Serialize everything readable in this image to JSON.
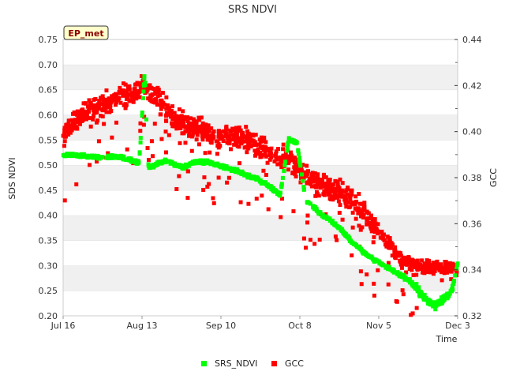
{
  "chart_data": {
    "type": "scatter",
    "title": "SRS NDVI",
    "badge": "EP_met",
    "xlabel": "Time",
    "ylabel_left": "SDS NDVI",
    "ylabel_right": "GCC",
    "x_ticks": [
      "Jul 16",
      "Aug 13",
      "Sep 10",
      "Oct 8",
      "Nov 5",
      "Dec 3"
    ],
    "x_range_days": [
      0,
      140
    ],
    "ylim_left": [
      0.2,
      0.75
    ],
    "yticks_left": [
      "0.20",
      "0.25",
      "0.30",
      "0.35",
      "0.40",
      "0.45",
      "0.50",
      "0.55",
      "0.60",
      "0.65",
      "0.70",
      "0.75"
    ],
    "ylim_right": [
      0.32,
      0.44
    ],
    "yticks_right": [
      "0.32",
      "0.34",
      "0.36",
      "0.38",
      "0.40",
      "0.42",
      "0.44"
    ],
    "grid": "horizontal bands",
    "legend_position": "bottom-center",
    "series": [
      {
        "name": "SRS_NDVI",
        "axis": "left",
        "color": "#00ff00",
        "x_days": [
          0,
          3,
          6,
          9,
          12,
          15,
          18,
          21,
          24,
          27,
          29,
          30,
          31,
          34,
          37,
          40,
          43,
          46,
          49,
          52,
          55,
          58,
          61,
          63,
          65,
          66,
          68,
          71,
          74,
          77,
          80,
          83,
          86,
          89,
          92,
          95,
          97,
          99,
          102,
          104,
          106,
          108,
          111,
          114,
          117,
          120,
          123,
          126,
          129,
          132,
          134,
          136,
          138,
          140
        ],
        "values": [
          0.52,
          0.52,
          0.518,
          0.517,
          0.516,
          0.515,
          0.517,
          0.515,
          0.51,
          0.505,
          0.69,
          0.5,
          0.495,
          0.505,
          0.508,
          0.5,
          0.495,
          0.505,
          0.508,
          0.505,
          0.5,
          0.495,
          0.49,
          0.485,
          0.48,
          0.478,
          0.475,
          0.465,
          0.455,
          0.44,
          0.55,
          0.545,
          0.43,
          0.415,
          0.4,
          0.39,
          0.38,
          0.37,
          0.35,
          0.34,
          0.33,
          0.32,
          0.31,
          0.3,
          0.29,
          0.28,
          0.27,
          0.25,
          0.23,
          0.22,
          0.23,
          0.24,
          0.25,
          0.3
        ]
      },
      {
        "name": "GCC",
        "axis": "right",
        "color": "#ff0000",
        "x_days": [
          0,
          5,
          10,
          15,
          20,
          25,
          28,
          30,
          35,
          40,
          45,
          50,
          55,
          60,
          65,
          70,
          75,
          80,
          85,
          90,
          95,
          100,
          105,
          110,
          115,
          120,
          125,
          130,
          135,
          140
        ],
        "values": [
          0.4,
          0.405,
          0.41,
          0.412,
          0.415,
          0.416,
          0.42,
          0.418,
          0.412,
          0.405,
          0.402,
          0.4,
          0.398,
          0.398,
          0.396,
          0.393,
          0.39,
          0.387,
          0.383,
          0.378,
          0.375,
          0.372,
          0.368,
          0.36,
          0.352,
          0.345,
          0.342,
          0.341,
          0.341,
          0.34
        ]
      }
    ]
  },
  "legend": {
    "items": [
      {
        "label": "SRS_NDVI",
        "color": "#00ff00"
      },
      {
        "label": "GCC",
        "color": "#ff0000"
      }
    ]
  }
}
